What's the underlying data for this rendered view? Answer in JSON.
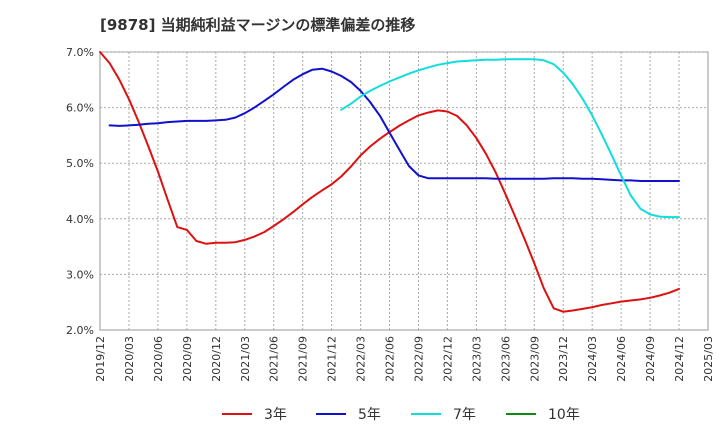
{
  "chart_data": {
    "type": "line",
    "title": "[9878]  当期純利益マージンの標準偏差の推移",
    "xlabel": "",
    "ylabel": "",
    "x_ticks": [
      "2019/12",
      "2020/03",
      "2020/06",
      "2020/09",
      "2020/12",
      "2021/03",
      "2021/06",
      "2021/09",
      "2021/12",
      "2022/03",
      "2022/06",
      "2022/09",
      "2022/12",
      "2023/03",
      "2023/06",
      "2023/09",
      "2023/12",
      "2024/03",
      "2024/06",
      "2024/09",
      "2024/12",
      "2025/03"
    ],
    "y_ticks": [
      "2.0%",
      "3.0%",
      "4.0%",
      "5.0%",
      "6.0%",
      "7.0%"
    ],
    "ylim": [
      2.0,
      7.0
    ],
    "xlim": [
      0,
      21
    ],
    "grid": true,
    "legend_position": "bottom",
    "series": [
      {
        "name": "3年",
        "color": "#dd1111",
        "x": [
          0,
          0.33,
          0.67,
          1,
          1.33,
          1.67,
          2,
          2.33,
          2.67,
          3,
          3.33,
          3.67,
          4,
          4.33,
          4.67,
          5,
          5.33,
          5.67,
          6,
          6.33,
          6.67,
          7,
          7.33,
          7.67,
          8,
          8.33,
          8.67,
          9,
          9.33,
          9.67,
          10,
          10.33,
          10.67,
          11,
          11.33,
          11.67,
          12,
          12.33,
          12.67,
          13,
          13.33,
          13.67,
          14,
          14.33,
          14.67,
          15,
          15.33,
          15.67,
          16,
          16.33,
          16.67,
          17,
          17.33,
          17.67,
          18,
          18.33,
          18.67,
          19,
          19.33,
          19.67,
          20
        ],
        "values": [
          7.0,
          6.8,
          6.5,
          6.15,
          5.75,
          5.3,
          4.85,
          4.35,
          3.85,
          3.8,
          3.6,
          3.55,
          3.57,
          3.57,
          3.58,
          3.62,
          3.68,
          3.76,
          3.87,
          3.99,
          4.12,
          4.26,
          4.39,
          4.51,
          4.62,
          4.76,
          4.94,
          5.14,
          5.3,
          5.44,
          5.56,
          5.67,
          5.77,
          5.86,
          5.91,
          5.95,
          5.93,
          5.85,
          5.68,
          5.45,
          5.17,
          4.83,
          4.45,
          4.05,
          3.63,
          3.2,
          2.75,
          2.39,
          2.33,
          2.35,
          2.38,
          2.41,
          2.45,
          2.48,
          2.51,
          2.53,
          2.55,
          2.58,
          2.62,
          2.67,
          2.74
        ]
      },
      {
        "name": "5年",
        "color": "#1111cc",
        "x": [
          0.33,
          0.67,
          1,
          1.33,
          1.67,
          2,
          2.33,
          2.67,
          3,
          3.33,
          3.67,
          4,
          4.33,
          4.67,
          5,
          5.33,
          5.67,
          6,
          6.33,
          6.67,
          7,
          7.33,
          7.67,
          8,
          8.33,
          8.67,
          9,
          9.33,
          9.67,
          10,
          10.33,
          10.67,
          11,
          11.33,
          11.67,
          12,
          12.33,
          12.67,
          13,
          13.33,
          13.67,
          14,
          14.33,
          14.67,
          15,
          15.33,
          15.67,
          16,
          16.33,
          16.67,
          17,
          17.33,
          17.67,
          18,
          18.33,
          18.67,
          19,
          19.33,
          19.67,
          20
        ],
        "values": [
          5.68,
          5.67,
          5.68,
          5.69,
          5.71,
          5.72,
          5.74,
          5.75,
          5.76,
          5.76,
          5.76,
          5.77,
          5.78,
          5.82,
          5.9,
          6.0,
          6.12,
          6.24,
          6.37,
          6.5,
          6.6,
          6.68,
          6.7,
          6.65,
          6.57,
          6.46,
          6.3,
          6.1,
          5.85,
          5.55,
          5.25,
          4.95,
          4.78,
          4.73,
          4.73,
          4.73,
          4.73,
          4.73,
          4.73,
          4.73,
          4.72,
          4.72,
          4.72,
          4.72,
          4.72,
          4.72,
          4.73,
          4.73,
          4.73,
          4.72,
          4.72,
          4.71,
          4.7,
          4.69,
          4.69,
          4.68,
          4.68,
          4.68,
          4.68,
          4.68
        ]
      },
      {
        "name": "7年",
        "color": "#11dddd",
        "x": [
          8.33,
          8.67,
          9,
          9.33,
          9.67,
          10,
          10.33,
          10.67,
          11,
          11.33,
          11.67,
          12,
          12.33,
          12.67,
          13,
          13.33,
          13.67,
          14,
          14.33,
          14.67,
          15,
          15.33,
          15.67,
          16,
          16.33,
          16.67,
          17,
          17.33,
          17.67,
          18,
          18.33,
          18.67,
          19,
          19.33,
          19.67,
          20
        ],
        "values": [
          5.96,
          6.07,
          6.2,
          6.3,
          6.39,
          6.47,
          6.54,
          6.61,
          6.67,
          6.72,
          6.77,
          6.8,
          6.83,
          6.84,
          6.85,
          6.86,
          6.86,
          6.87,
          6.87,
          6.87,
          6.87,
          6.85,
          6.78,
          6.63,
          6.42,
          6.16,
          5.86,
          5.52,
          5.15,
          4.78,
          4.42,
          4.18,
          4.08,
          4.04,
          4.03,
          4.03
        ]
      },
      {
        "name": "10年",
        "color": "#118811",
        "x": [],
        "values": []
      }
    ]
  }
}
